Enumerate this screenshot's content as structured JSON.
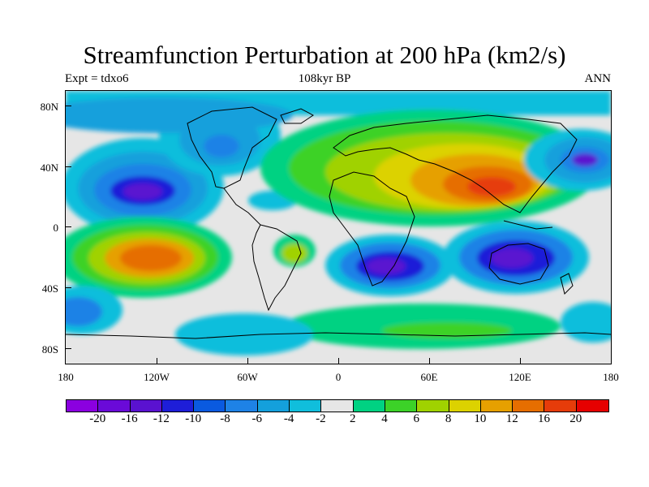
{
  "title": "Streamfunction Perturbation at 200 hPa (km2/s)",
  "subtitle_left": "Expt = tdxo6",
  "subtitle_center": "108kyr BP",
  "subtitle_right": "ANN",
  "lat_ticks": [
    "80N",
    "40N",
    "0",
    "40S",
    "80S"
  ],
  "lon_ticks": [
    "180",
    "120W",
    "60W",
    "0",
    "60E",
    "120E",
    "180"
  ],
  "colorbar": {
    "colors": [
      "#8b00e0",
      "#6a0ad8",
      "#5a12d0",
      "#1e1ed8",
      "#0a5ae0",
      "#1e82e6",
      "#14a0dc",
      "#10bedc",
      "#e6e6e6",
      "#00d282",
      "#3cd228",
      "#a0d200",
      "#dcd200",
      "#e6a000",
      "#e66e00",
      "#e63c0a",
      "#e60000"
    ],
    "labels": [
      "-20",
      "-16",
      "-12",
      "-10",
      "-8",
      "-6",
      "-4",
      "-2",
      "2",
      "4",
      "6",
      "8",
      "10",
      "12",
      "16",
      "20"
    ]
  }
}
